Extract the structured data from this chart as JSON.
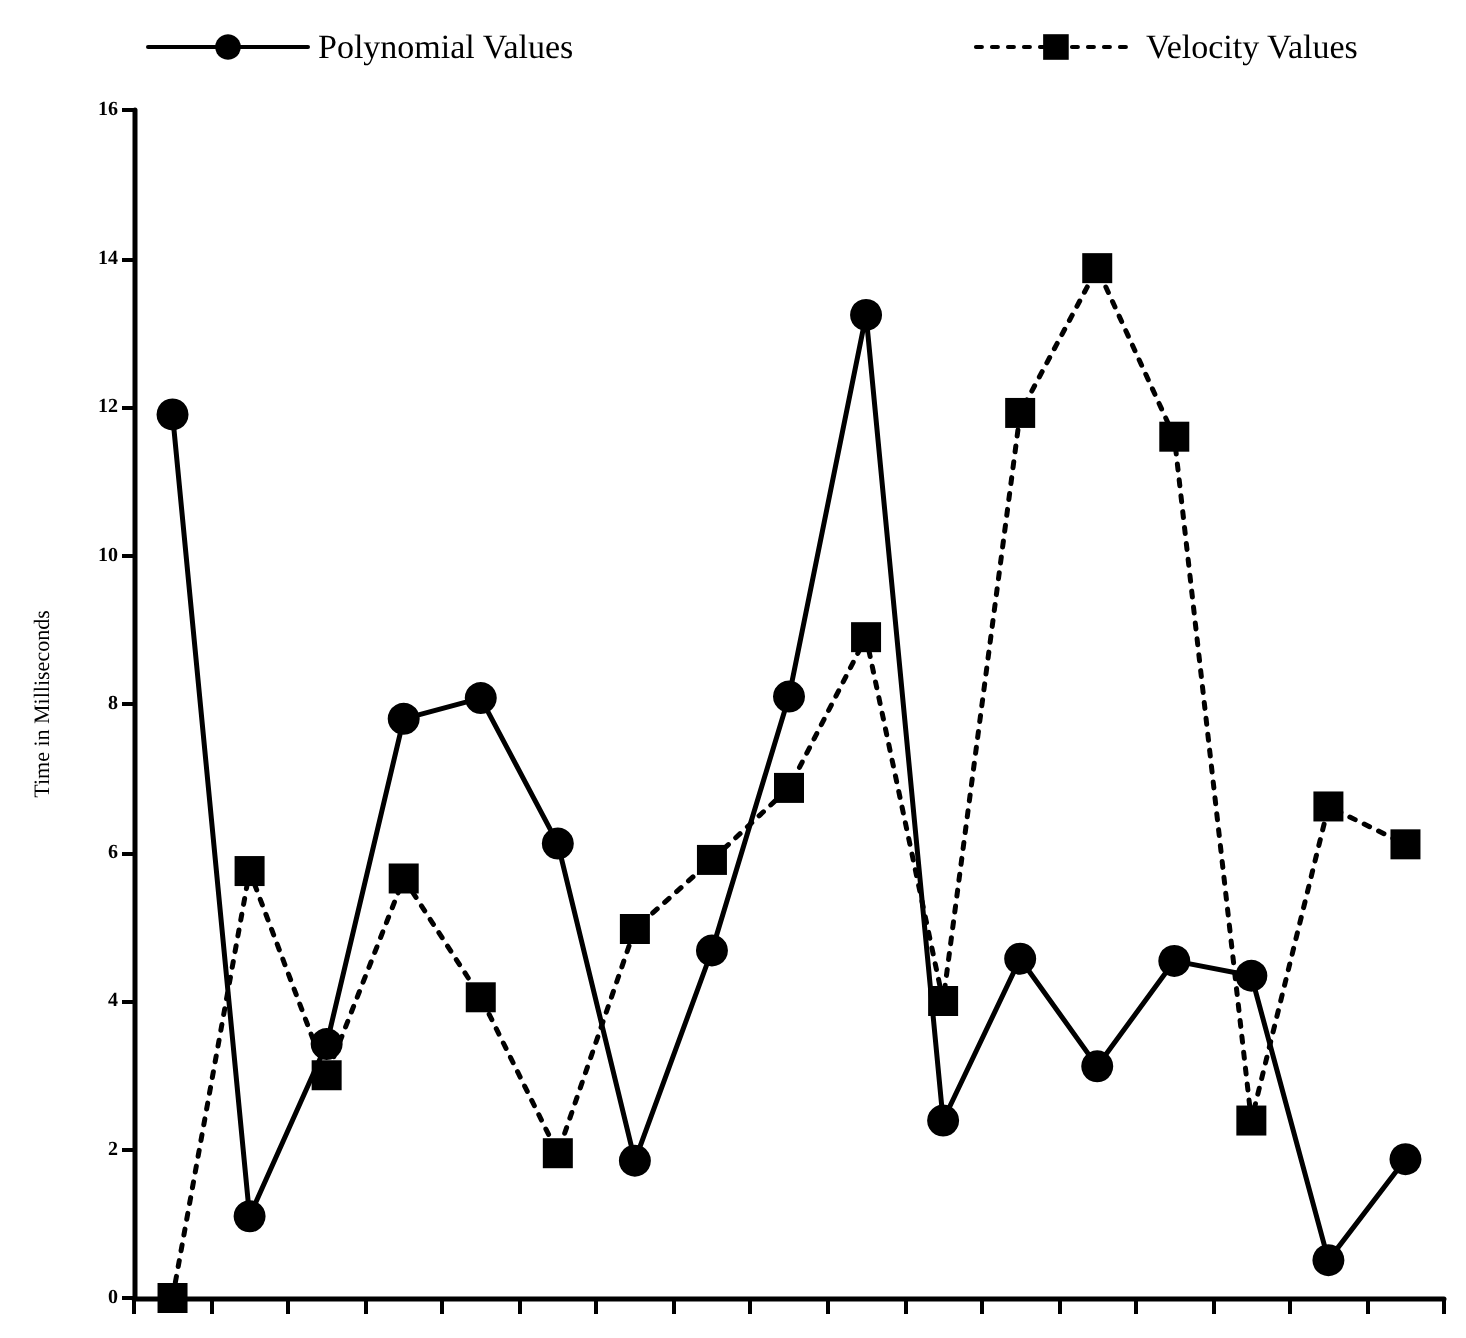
{
  "chart_data": {
    "type": "line",
    "ylabel": "Time in Milliseconds",
    "categories": [
      null,
      null,
      null,
      null,
      null,
      null,
      null,
      null,
      null,
      null,
      null,
      null,
      null,
      null,
      null,
      null,
      null
    ],
    "series": [
      {
        "name": "Polynomial Values",
        "color": "#000000",
        "marker": "circle",
        "line_style": "solid",
        "values": [
          11.9,
          1.1,
          3.42,
          7.8,
          8.08,
          6.12,
          1.85,
          4.68,
          8.1,
          13.24,
          2.39,
          4.57,
          3.12,
          4.54,
          4.34,
          0.51,
          1.87
        ]
      },
      {
        "name": "Velocity Values",
        "color": "#000000",
        "marker": "square",
        "line_style": "dotted",
        "values": [
          0,
          5.75,
          3.0,
          5.65,
          4.05,
          1.95,
          4.97,
          5.9,
          6.87,
          8.9,
          4.0,
          11.92,
          13.87,
          11.6,
          2.39,
          6.62,
          6.11
        ]
      }
    ],
    "ylim": [
      0,
      16
    ],
    "yticks": [
      0,
      2,
      4,
      6,
      8,
      10,
      12,
      14,
      16
    ],
    "grid": false,
    "legend": "top",
    "tick_labels": "y"
  }
}
